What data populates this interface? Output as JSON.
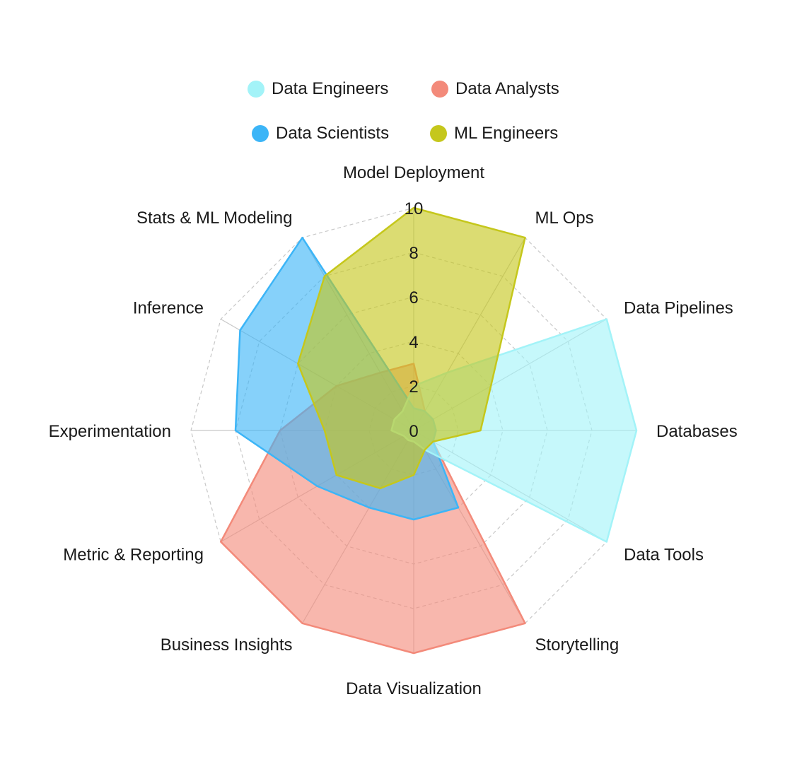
{
  "chart_data": {
    "type": "radar",
    "axes": [
      "Model Deployment",
      "ML Ops",
      "Data Pipelines",
      "Databases",
      "Data Tools",
      "Storytelling",
      "Data Visualization",
      "Business Insights",
      "Metric & Reporting",
      "Experimentation",
      "Inference",
      "Stats & ML Modeling"
    ],
    "r_ticks": [
      "0",
      "2",
      "4",
      "6",
      "8",
      "10"
    ],
    "r_range": [
      0,
      10
    ],
    "grid": true,
    "legend_position": "top",
    "series": [
      {
        "name": "Data Engineers",
        "color": "#a3f3f8",
        "values": [
          2,
          3,
          10,
          10,
          10,
          1,
          0.5,
          0.5,
          0.5,
          1,
          1,
          1
        ]
      },
      {
        "name": "Data Analysts",
        "color": "#f38a7a",
        "values": [
          3,
          1,
          1,
          1,
          1,
          10,
          10,
          10,
          10,
          6,
          4,
          3
        ]
      },
      {
        "name": "Data Scientists",
        "color": "#3cb5f7",
        "values": [
          1,
          1,
          1,
          1,
          1,
          4,
          4,
          4,
          5,
          8,
          9,
          10
        ]
      },
      {
        "name": "ML Engineers",
        "color": "#c5c71c",
        "values": [
          10,
          10,
          4,
          3,
          1,
          1,
          2,
          3,
          4,
          4,
          6,
          8
        ]
      }
    ]
  }
}
